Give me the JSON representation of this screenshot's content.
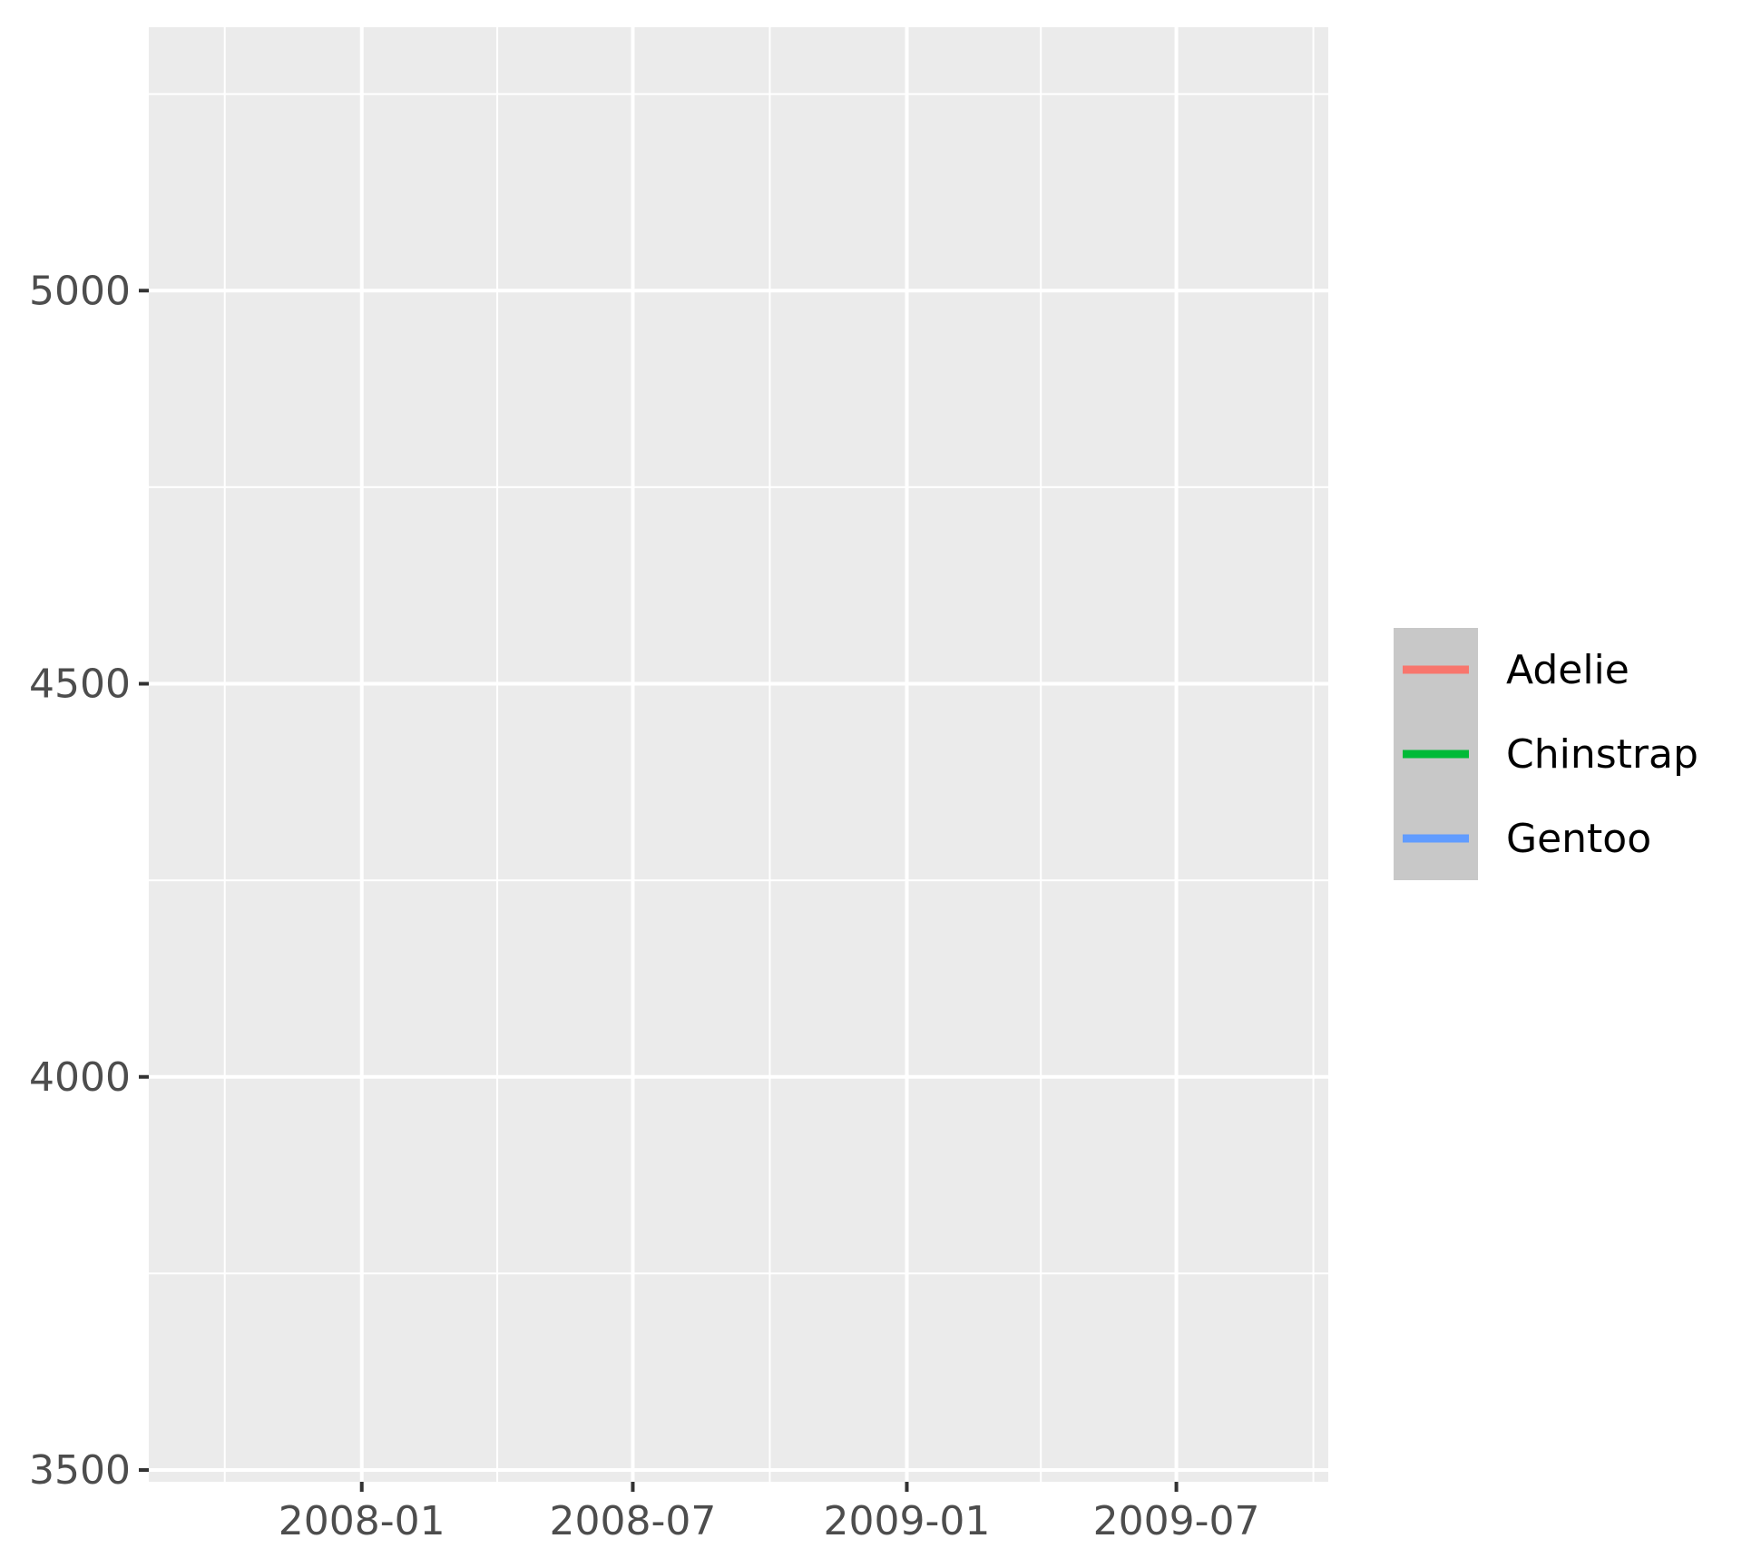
{
  "chart_data": {
    "type": "line",
    "title": "",
    "xlabel": "",
    "ylabel": "",
    "x_axis_type": "date",
    "xlim": [
      "2007-08-11",
      "2009-10-11"
    ],
    "ylim": [
      3485,
      5335
    ],
    "x_ticks": [
      {
        "value": "2008-01-01",
        "label": "2008-01"
      },
      {
        "value": "2008-07-01",
        "label": "2008-07"
      },
      {
        "value": "2009-01-01",
        "label": "2009-01"
      },
      {
        "value": "2009-07-01",
        "label": "2009-07"
      }
    ],
    "x_minor_ticks": [
      "2007-10-01",
      "2008-04-01",
      "2008-10-01",
      "2009-04-01",
      "2009-10-01"
    ],
    "y_ticks": [
      {
        "value": 3500,
        "label": "3500"
      },
      {
        "value": 4000,
        "label": "4000"
      },
      {
        "value": 4500,
        "label": "4500"
      },
      {
        "value": 5000,
        "label": "5000"
      }
    ],
    "y_minor_ticks": [
      3750,
      4250,
      4750,
      5250
    ],
    "grid": true,
    "legend_position": "right",
    "series": [
      {
        "name": "Adelie",
        "color": "#F8766D",
        "points": []
      },
      {
        "name": "Chinstrap",
        "color": "#00BA38",
        "points": []
      },
      {
        "name": "Gentoo",
        "color": "#619CFF",
        "points": []
      }
    ]
  },
  "colors": {
    "panel_background": "#EBEBEB",
    "grid_line": "#FFFFFF",
    "legend_background": "#C8C8C8",
    "tick_mark": "#333333"
  }
}
